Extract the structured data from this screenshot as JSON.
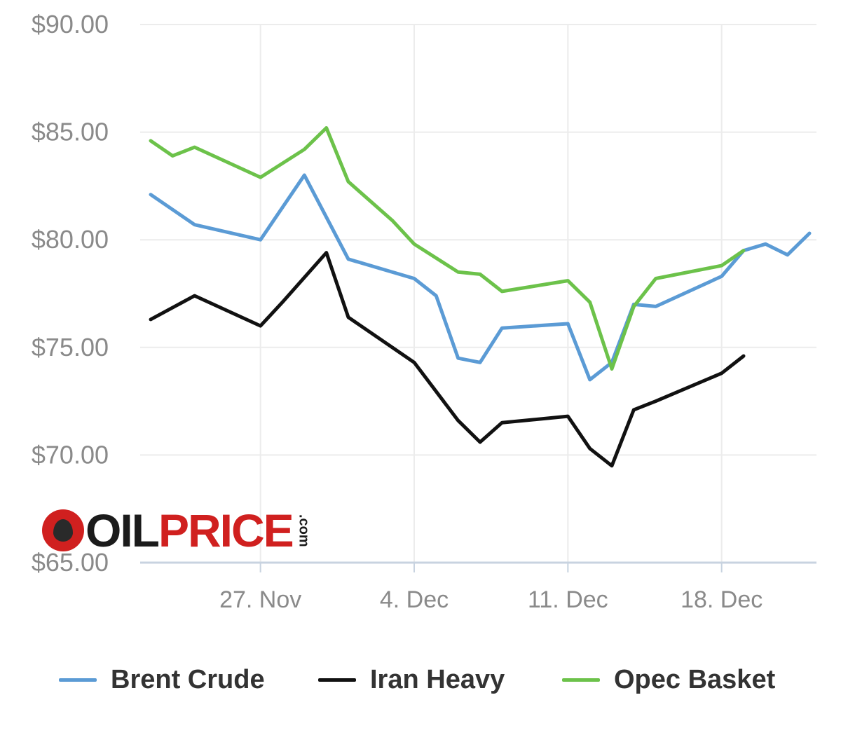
{
  "logo": {
    "part1": "OIL",
    "part2": "PRICE",
    "part3": ".com",
    "icon": "oil-drop-icon"
  },
  "colors": {
    "brent": "#5b9bd5",
    "iran": "#111111",
    "opec": "#6cc24a",
    "grid": "#ececec",
    "axis": "#c8d3e0"
  },
  "chart_data": {
    "type": "line",
    "title": "",
    "xlabel": "",
    "ylabel": "",
    "x_ticks": [
      "27. Nov",
      "4. Dec",
      "11. Dec",
      "18. Dec"
    ],
    "x_tick_dates": [
      "2017-11-27",
      "2017-12-04",
      "2017-12-11",
      "2017-12-18"
    ],
    "y_ticks": [
      "$65.00",
      "$70.00",
      "$75.00",
      "$80.00",
      "$85.00",
      "$90.00"
    ],
    "ylim": [
      65,
      90
    ],
    "xlim": [
      "2017-11-22",
      "2017-12-22"
    ],
    "grid": true,
    "legend_position": "bottom",
    "series": [
      {
        "name": "Brent Crude",
        "color": "#5b9bd5",
        "points": [
          [
            "2017-11-22",
            82.1
          ],
          [
            "2017-11-24",
            80.7
          ],
          [
            "2017-11-27",
            80.0
          ],
          [
            "2017-11-29",
            83.0
          ],
          [
            "2017-12-01",
            79.1
          ],
          [
            "2017-12-04",
            78.2
          ],
          [
            "2017-12-05",
            77.4
          ],
          [
            "2017-12-06",
            74.5
          ],
          [
            "2017-12-07",
            74.3
          ],
          [
            "2017-12-08",
            75.9
          ],
          [
            "2017-12-11",
            76.1
          ],
          [
            "2017-12-12",
            73.5
          ],
          [
            "2017-12-13",
            74.3
          ],
          [
            "2017-12-14",
            77.0
          ],
          [
            "2017-12-15",
            76.9
          ],
          [
            "2017-12-18",
            78.3
          ],
          [
            "2017-12-19",
            79.5
          ],
          [
            "2017-12-20",
            79.8
          ],
          [
            "2017-12-21",
            79.3
          ],
          [
            "2017-12-22",
            80.3
          ]
        ]
      },
      {
        "name": "Iran Heavy",
        "color": "#111111",
        "points": [
          [
            "2017-11-22",
            76.3
          ],
          [
            "2017-11-24",
            77.4
          ],
          [
            "2017-11-27",
            76.0
          ],
          [
            "2017-11-28",
            77.1
          ],
          [
            "2017-11-30",
            79.4
          ],
          [
            "2017-12-01",
            76.4
          ],
          [
            "2017-12-04",
            74.3
          ],
          [
            "2017-12-06",
            71.6
          ],
          [
            "2017-12-07",
            70.6
          ],
          [
            "2017-12-08",
            71.5
          ],
          [
            "2017-12-11",
            71.8
          ],
          [
            "2017-12-12",
            70.3
          ],
          [
            "2017-12-13",
            69.5
          ],
          [
            "2017-12-14",
            72.1
          ],
          [
            "2017-12-15",
            72.5
          ],
          [
            "2017-12-18",
            73.8
          ],
          [
            "2017-12-19",
            74.6
          ]
        ]
      },
      {
        "name": "Opec Basket",
        "color": "#6cc24a",
        "points": [
          [
            "2017-11-22",
            84.6
          ],
          [
            "2017-11-23",
            83.9
          ],
          [
            "2017-11-24",
            84.3
          ],
          [
            "2017-11-27",
            82.9
          ],
          [
            "2017-11-29",
            84.2
          ],
          [
            "2017-11-30",
            85.2
          ],
          [
            "2017-12-01",
            82.7
          ],
          [
            "2017-12-03",
            80.9
          ],
          [
            "2017-12-04",
            79.8
          ],
          [
            "2017-12-06",
            78.5
          ],
          [
            "2017-12-07",
            78.4
          ],
          [
            "2017-12-08",
            77.6
          ],
          [
            "2017-12-11",
            78.1
          ],
          [
            "2017-12-12",
            77.1
          ],
          [
            "2017-12-13",
            74.0
          ],
          [
            "2017-12-14",
            76.9
          ],
          [
            "2017-12-15",
            78.2
          ],
          [
            "2017-12-18",
            78.8
          ],
          [
            "2017-12-19",
            79.5
          ]
        ]
      }
    ]
  }
}
